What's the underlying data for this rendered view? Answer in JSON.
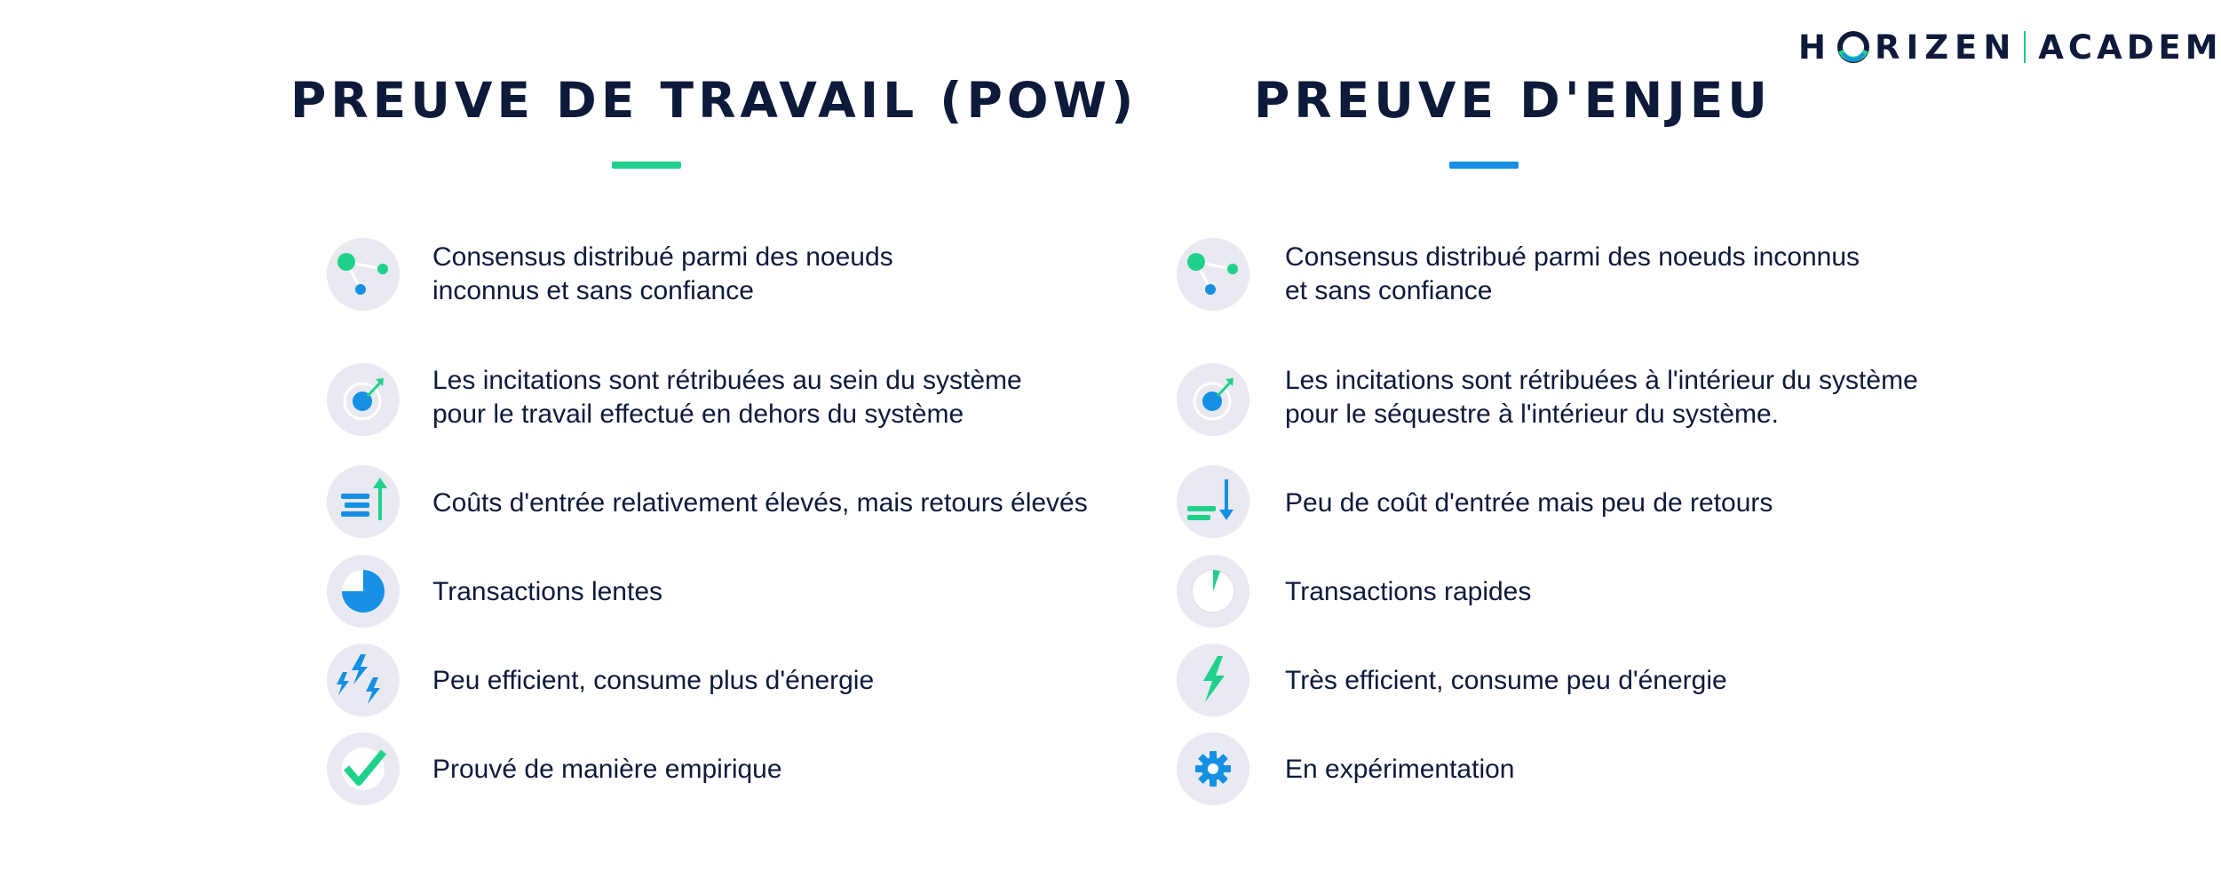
{
  "brand": {
    "logo_left": "H",
    "logo_mid": "RIZEN",
    "logo_right": "ACADEMY"
  },
  "colors": {
    "navy": "#0e1a3a",
    "green": "#1fd18a",
    "blue": "#1590e3",
    "icon_bg": "#e8e9f1"
  },
  "pow": {
    "title": "PREUVE DE TRAVAIL (POW)",
    "items": [
      {
        "icon": "network-nodes-icon",
        "lines": [
          "Consensus distribué parmi des noeuds",
          "inconnus et sans confiance"
        ]
      },
      {
        "icon": "target-arrow-icon",
        "lines": [
          "Les incitations sont rétribuées au sein du système",
          "pour le travail effectué en dehors du système"
        ]
      },
      {
        "icon": "bars-arrow-up-icon",
        "lines": [
          "Coûts d'entrée relativement élevés, mais retours élevés"
        ]
      },
      {
        "icon": "pie-clock-large-icon",
        "lines": [
          "Transactions lentes"
        ]
      },
      {
        "icon": "multiple-lightning-icon",
        "lines": [
          "Peu efficient, consume plus d'énergie"
        ]
      },
      {
        "icon": "checkmark-icon",
        "lines": [
          "Prouvé de manière empirique"
        ]
      }
    ]
  },
  "pos": {
    "title": "PREUVE D'ENJEU",
    "items": [
      {
        "icon": "network-nodes-icon",
        "lines": [
          "Consensus distribué parmi des noeuds inconnus",
          "et sans confiance"
        ]
      },
      {
        "icon": "target-arrow-icon",
        "lines": [
          "Les incitations sont rétribuées à l'intérieur du système",
          "pour le séquestre à l'intérieur du système."
        ]
      },
      {
        "icon": "bars-arrow-down-icon",
        "lines": [
          "Peu de coût d'entrée mais peu de retours"
        ]
      },
      {
        "icon": "pie-clock-small-icon",
        "lines": [
          "Transactions rapides"
        ]
      },
      {
        "icon": "single-lightning-icon",
        "lines": [
          "Très efficient, consume peu d'énergie"
        ]
      },
      {
        "icon": "gear-icon",
        "lines": [
          "En expérimentation"
        ]
      }
    ]
  }
}
